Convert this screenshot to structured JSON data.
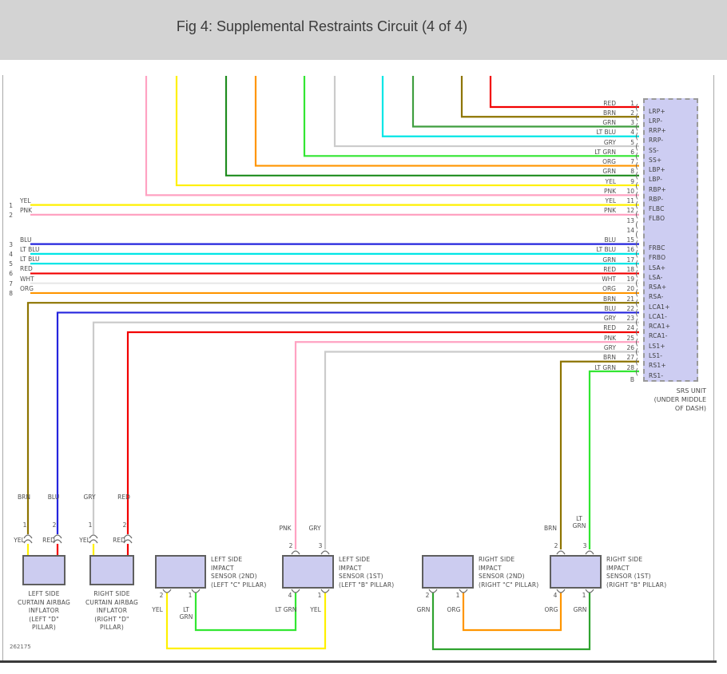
{
  "title": "Fig 4: Supplemental Restraints Circuit (4 of 4)",
  "doc_number": "262175",
  "srs_unit": {
    "caption_lines": [
      "SRS UNIT",
      "(UNDER MIDDLE",
      "OF DASH)"
    ],
    "connector_id": "B",
    "pins": [
      {
        "num": "1",
        "wire": "RED",
        "signal": "LRP+"
      },
      {
        "num": "2",
        "wire": "BRN",
        "signal": "LRP-"
      },
      {
        "num": "3",
        "wire": "GRN",
        "signal": "RRP+"
      },
      {
        "num": "4",
        "wire": "LT BLU",
        "signal": "RRP-"
      },
      {
        "num": "5",
        "wire": "GRY",
        "signal": "SS-"
      },
      {
        "num": "6",
        "wire": "LT GRN",
        "signal": "SS+"
      },
      {
        "num": "7",
        "wire": "ORG",
        "signal": "LBP+"
      },
      {
        "num": "8",
        "wire": "GRN",
        "signal": "LBP-"
      },
      {
        "num": "9",
        "wire": "YEL",
        "signal": "RBP+"
      },
      {
        "num": "10",
        "wire": "PNK",
        "signal": "RBP-"
      },
      {
        "num": "11",
        "wire": "YEL",
        "signal": "FLBC"
      },
      {
        "num": "12",
        "wire": "PNK",
        "signal": "FLBO"
      },
      {
        "num": "13",
        "wire": "",
        "signal": ""
      },
      {
        "num": "14",
        "wire": "",
        "signal": ""
      },
      {
        "num": "15",
        "wire": "BLU",
        "signal": "FRBC"
      },
      {
        "num": "16",
        "wire": "LT BLU",
        "signal": "FRBO"
      },
      {
        "num": "17",
        "wire": "GRN",
        "signal": "LSA+"
      },
      {
        "num": "18",
        "wire": "RED",
        "signal": "LSA-"
      },
      {
        "num": "19",
        "wire": "WHT",
        "signal": "RSA+"
      },
      {
        "num": "20",
        "wire": "ORG",
        "signal": "RSA-"
      },
      {
        "num": "21",
        "wire": "BRN",
        "signal": "LCA1+"
      },
      {
        "num": "22",
        "wire": "BLU",
        "signal": "LCA1-"
      },
      {
        "num": "23",
        "wire": "GRY",
        "signal": "RCA1+"
      },
      {
        "num": "24",
        "wire": "RED",
        "signal": "RCA1-"
      },
      {
        "num": "25",
        "wire": "PNK",
        "signal": "LS1+"
      },
      {
        "num": "26",
        "wire": "GRY",
        "signal": "LS1-"
      },
      {
        "num": "27",
        "wire": "BRN",
        "signal": "RS1+"
      },
      {
        "num": "28",
        "wire": "LT GRN",
        "signal": "RS1-"
      }
    ]
  },
  "left_terminals": [
    {
      "num": "1",
      "wire": "YEL"
    },
    {
      "num": "2",
      "wire": "PNK"
    },
    {
      "num": "3",
      "wire": "BLU"
    },
    {
      "num": "4",
      "wire": "LT BLU"
    },
    {
      "num": "5",
      "wire": "LT BLU"
    },
    {
      "num": "6",
      "wire": "RED"
    },
    {
      "num": "7",
      "wire": "WHT"
    },
    {
      "num": "8",
      "wire": "ORG"
    }
  ],
  "components": [
    {
      "name": "left-curtain-airbag-inflator",
      "caption_lines": [
        "LEFT SIDE",
        "CURTAIN AIRBAG",
        "INFLATOR",
        "(LEFT \"D\"",
        "PILLAR)"
      ],
      "top_pins": [
        {
          "num": "1",
          "wire_above": "BRN",
          "wire_below": "YEL"
        },
        {
          "num": "2",
          "wire_above": "BLU",
          "wire_below": "RED"
        }
      ]
    },
    {
      "name": "right-curtain-airbag-inflator",
      "caption_lines": [
        "RIGHT SIDE",
        "CURTAIN AIRBAG",
        "INFLATOR",
        "(RIGHT \"D\"",
        "PILLAR)"
      ],
      "top_pins": [
        {
          "num": "1",
          "wire_above": "GRY",
          "wire_below": "YEL"
        },
        {
          "num": "2",
          "wire_above": "RED",
          "wire_below": "RED"
        }
      ]
    },
    {
      "name": "left-side-impact-sensor-2nd",
      "caption_lines": [
        "LEFT SIDE",
        "IMPACT",
        "SENSOR (2ND)",
        "(LEFT \"C\" PILLAR)"
      ],
      "bottom_pins": [
        {
          "num": "2",
          "wire": "YEL"
        },
        {
          "num": "1",
          "wire": "LT\nGRN"
        }
      ]
    },
    {
      "name": "left-side-impact-sensor-1st",
      "caption_lines": [
        "LEFT SIDE",
        "IMPACT",
        "SENSOR (1ST)",
        "(LEFT \"B\" PILLAR)"
      ],
      "top_pins": [
        {
          "num": "2",
          "wire_above": "PNK"
        },
        {
          "num": "3",
          "wire_above": "GRY"
        }
      ],
      "bottom_pins": [
        {
          "num": "4",
          "wire": "LT GRN"
        },
        {
          "num": "1",
          "wire": "YEL"
        }
      ]
    },
    {
      "name": "right-side-impact-sensor-2nd",
      "caption_lines": [
        "RIGHT SIDE",
        "IMPACT",
        "SENSOR (2ND)",
        "(RIGHT \"C\" PILLAR)"
      ],
      "bottom_pins": [
        {
          "num": "2",
          "wire": "GRN"
        },
        {
          "num": "1",
          "wire": "ORG"
        }
      ]
    },
    {
      "name": "right-side-impact-sensor-1st",
      "caption_lines": [
        "RIGHT SIDE",
        "IMPACT",
        "SENSOR (1ST)",
        "(RIGHT \"B\" PILLAR)"
      ],
      "top_pins": [
        {
          "num": "2",
          "wire_above": "BRN"
        },
        {
          "num": "3",
          "wire_above": "LT\nGRN"
        }
      ],
      "bottom_pins": [
        {
          "num": "4",
          "wire": "ORG"
        },
        {
          "num": "1",
          "wire": "GRN"
        }
      ]
    }
  ],
  "wire_colors": {
    "RED": "#f20000",
    "BRN": "#8d7400",
    "GRN": "#3f9e3f",
    "DK_GRN": "#1e8c1e",
    "MED_GRN": "#2fa32f",
    "LT_GRN": "#32e632",
    "YEL": "#fff000",
    "PNK": "#ffa2c2",
    "ORG": "#ff9500",
    "BLU": "#2525dd",
    "LT_BLU": "#00e6e6",
    "GRY": "#cbcbcb",
    "WHT": "#e8e8e8"
  }
}
